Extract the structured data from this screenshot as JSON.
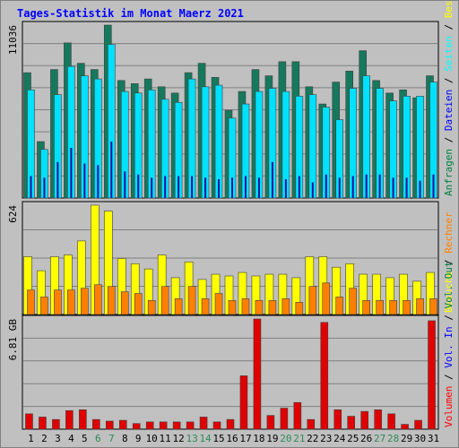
{
  "title": "Tages-Statistik im Monat Maerz 2021",
  "chart_data": [
    {
      "type": "bar",
      "panel": "top",
      "ymax_label": "11036",
      "ylim": [
        0,
        11036
      ],
      "legend": [
        {
          "text": "Anfragen",
          "color": "#008040"
        },
        {
          "text": " / ",
          "color": "#000000"
        },
        {
          "text": "Dateien",
          "color": "#0000ff"
        },
        {
          "text": " / ",
          "color": "#000000"
        },
        {
          "text": "Seiten",
          "color": "#00ffff"
        },
        {
          "text": " / ",
          "color": "#000000"
        },
        {
          "text": "Besuche",
          "color": "#ffff00"
        }
      ],
      "series": [
        {
          "name": "Anfragen",
          "color": "#16785c",
          "values": [
            8000,
            3600,
            8200,
            9900,
            8600,
            8200,
            11036,
            7500,
            7300,
            7600,
            7100,
            6700,
            8000,
            8600,
            7700,
            5600,
            6800,
            8200,
            7800,
            8700,
            8700,
            7100,
            6000,
            7400,
            8100,
            9400,
            7500,
            6700,
            6900,
            6400,
            7800
          ]
        },
        {
          "name": "Dateien",
          "color": "#00e0ff",
          "values": [
            6900,
            3100,
            6600,
            8400,
            7800,
            7600,
            9800,
            6800,
            6700,
            6900,
            6300,
            6100,
            7600,
            7100,
            7200,
            5100,
            6000,
            6800,
            7000,
            6800,
            6500,
            6600,
            5800,
            5000,
            7000,
            7800,
            7000,
            6200,
            6500,
            6500,
            7400
          ]
        },
        {
          "name": "Seiten",
          "color": "#1010a0",
          "values": [
            1400,
            1300,
            2300,
            3200,
            2200,
            2100,
            3600,
            1700,
            1500,
            1300,
            1400,
            1400,
            1400,
            1300,
            1200,
            1300,
            1400,
            1300,
            2300,
            1200,
            1400,
            1000,
            1500,
            1300,
            1400,
            1500,
            1500,
            1300,
            1300,
            1100,
            1500
          ]
        }
      ]
    },
    {
      "type": "bar",
      "panel": "middle",
      "ymax_label": "624",
      "ylim": [
        0,
        624
      ],
      "legend": [
        {
          "text": "Besuche",
          "color": "#ffff00"
        },
        {
          "text": " / ",
          "color": "#000000"
        },
        {
          "text": "Rechner",
          "color": "#ff8000"
        }
      ],
      "series": [
        {
          "name": "Besuche",
          "color": "#ffff00",
          "values": [
            330,
            250,
            330,
            340,
            420,
            624,
            590,
            320,
            290,
            260,
            340,
            210,
            300,
            200,
            230,
            220,
            240,
            220,
            230,
            230,
            210,
            330,
            330,
            270,
            290,
            230,
            230,
            210,
            230,
            190,
            240
          ]
        },
        {
          "name": "Rechner",
          "color": "#ff8000",
          "values": [
            140,
            100,
            140,
            140,
            150,
            170,
            160,
            130,
            120,
            80,
            160,
            90,
            160,
            90,
            120,
            80,
            90,
            80,
            80,
            90,
            70,
            160,
            180,
            100,
            150,
            80,
            80,
            80,
            80,
            90,
            90
          ]
        }
      ]
    },
    {
      "type": "bar",
      "panel": "bottom",
      "ymax_label": "6.81 GB",
      "ylim": [
        0,
        6.81
      ],
      "legend": [
        {
          "text": "Volumen",
          "color": "#ff0000"
        },
        {
          "text": " / ",
          "color": "#000000"
        },
        {
          "text": "Vol. In",
          "color": "#0000ff"
        },
        {
          "text": " / ",
          "color": "#000000"
        },
        {
          "text": "Vol. Out",
          "color": "#008040"
        }
      ],
      "series": [
        {
          "name": "Volumen",
          "color": "#e00000",
          "values": [
            0.95,
            0.75,
            0.6,
            1.15,
            1.2,
            0.6,
            0.5,
            0.55,
            0.35,
            0.45,
            0.45,
            0.45,
            0.45,
            0.75,
            0.45,
            0.6,
            3.3,
            6.81,
            0.85,
            1.3,
            1.65,
            0.6,
            6.6,
            1.2,
            0.8,
            1.1,
            1.2,
            0.95,
            0.3,
            0.55,
            6.7
          ]
        }
      ]
    }
  ],
  "days": [
    "1",
    "2",
    "3",
    "4",
    "5",
    "6",
    "7",
    "8",
    "9",
    "10",
    "11",
    "12",
    "13",
    "14",
    "15",
    "16",
    "17",
    "18",
    "19",
    "20",
    "21",
    "22",
    "23",
    "24",
    "25",
    "26",
    "27",
    "28",
    "29",
    "30",
    "31"
  ],
  "weekend_days": [
    6,
    7,
    13,
    14,
    20,
    21,
    27,
    28
  ],
  "colors": {
    "weekday": "#000000",
    "weekend": "#2e8b57",
    "background": "#c0c0c0",
    "plot_bg": "#c0c0c0",
    "grid": "#808080",
    "title": "#0000ff"
  }
}
